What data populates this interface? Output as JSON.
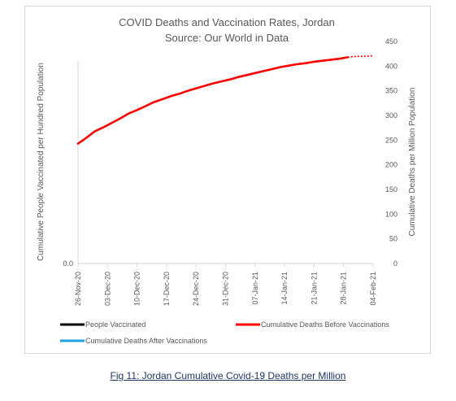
{
  "chart_data": {
    "type": "line",
    "title": "COVID Deaths and Vaccination Rates, Jordan",
    "subtitle": "Source: Our World in Data",
    "ylabel_left": "Cumulative People Vaccinated per Hundred Population",
    "ylabel_right": "Cumulative Deaths per Million Population",
    "left_ticks": [
      "0.0"
    ],
    "ylim_right": [
      0,
      450
    ],
    "right_ticks": [
      "0",
      "50",
      "100",
      "150",
      "200",
      "250",
      "300",
      "350",
      "400",
      "450"
    ],
    "x_ticks": [
      "26-Nov-20",
      "03-Dec-20",
      "10-Dec-20",
      "17-Dec-20",
      "24-Dec-20",
      "31-Dec-20",
      "07-Jan-21",
      "14-Jan-21",
      "21-Jan-21",
      "28-Jan-21",
      "04-Feb-21"
    ],
    "x_range_days": [
      0,
      70
    ],
    "series": [
      {
        "name": "People Vaccinated",
        "color": "#000000",
        "dashed": false,
        "x": [],
        "y": []
      },
      {
        "name": "Cumulative Deaths Before Vaccinations",
        "color": "#ff0000",
        "dashed": false,
        "x": [
          0,
          2,
          4,
          6,
          8,
          10,
          12,
          14,
          16,
          18,
          20,
          22,
          24,
          26,
          28,
          30,
          32,
          34,
          36,
          38,
          40,
          42,
          44,
          46,
          48,
          50,
          52,
          54,
          56,
          58,
          60,
          62,
          64
        ],
        "y": [
          243,
          255,
          268,
          276,
          285,
          294,
          304,
          311,
          319,
          327,
          333,
          339,
          344,
          350,
          355,
          360,
          365,
          369,
          373,
          378,
          382,
          386,
          390,
          394,
          398,
          401,
          404,
          406,
          409,
          411,
          413,
          415,
          418
        ]
      },
      {
        "name": "",
        "color": "#ff0000",
        "dashed": true,
        "x": [
          64,
          66,
          68,
          70
        ],
        "y": [
          418,
          420,
          420,
          421
        ]
      },
      {
        "name": "Cumulative Deaths After Vaccinations",
        "color": "#1ca0e0",
        "dashed": false,
        "x": [],
        "y": []
      }
    ],
    "legend_position": "bottom",
    "grid": false
  },
  "caption": "Fig 11: Jordan Cumulative Covid-19 Deaths per Million"
}
